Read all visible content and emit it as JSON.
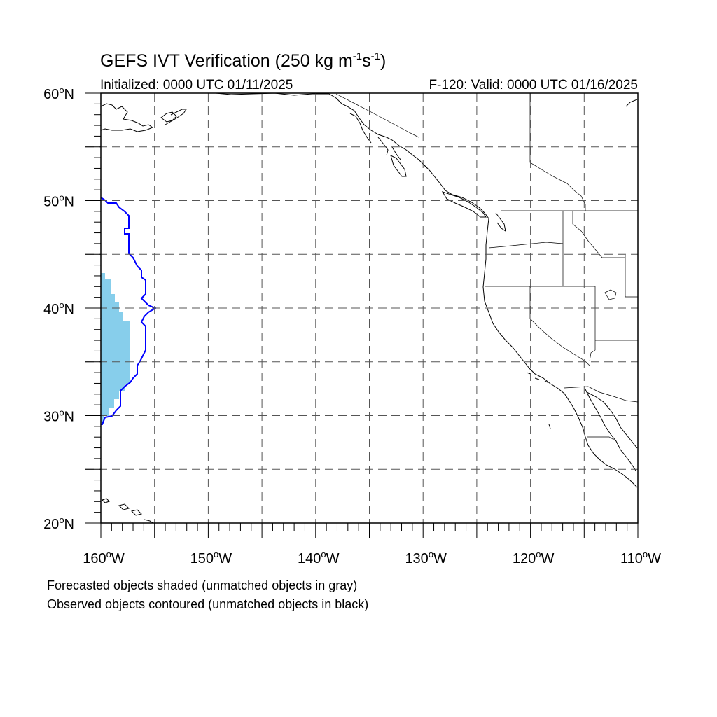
{
  "title": {
    "text": "GEFS IVT Verification (250 kg m",
    "sup1": "-1",
    "mid": "s",
    "sup2": "-1",
    "end": ")"
  },
  "subtitle": {
    "left": "Initialized: 0000 UTC 01/11/2025",
    "right": "F-120: Valid: 0000 UTC 01/16/2025"
  },
  "captions": [
    "Forecasted objects shaded (unmatched objects in gray)",
    "Observed objects contoured (unmatched objects in black)"
  ],
  "map": {
    "lon_range": [
      -160,
      -110
    ],
    "lat_range": [
      20,
      60
    ],
    "grid_lon_step": 5,
    "grid_lat_step": 5,
    "x_labels": [
      {
        "lon": -160,
        "num": "160",
        "hemi": "W"
      },
      {
        "lon": -150,
        "num": "150",
        "hemi": "W"
      },
      {
        "lon": -140,
        "num": "140",
        "hemi": "W"
      },
      {
        "lon": -130,
        "num": "130",
        "hemi": "W"
      },
      {
        "lon": -120,
        "num": "120",
        "hemi": "W"
      },
      {
        "lon": -110,
        "num": "110",
        "hemi": "W"
      }
    ],
    "y_labels": [
      {
        "lat": 60,
        "num": "60",
        "hemi": "N"
      },
      {
        "lat": 50,
        "num": "50",
        "hemi": "N"
      },
      {
        "lat": 40,
        "num": "40",
        "hemi": "N"
      },
      {
        "lat": 30,
        "num": "30",
        "hemi": "N"
      },
      {
        "lat": 20,
        "num": "20",
        "hemi": "N"
      }
    ],
    "forecast_object_color": "#87ceeb",
    "observed_contour_color": "#0000ff",
    "coast_color": "#000000"
  }
}
